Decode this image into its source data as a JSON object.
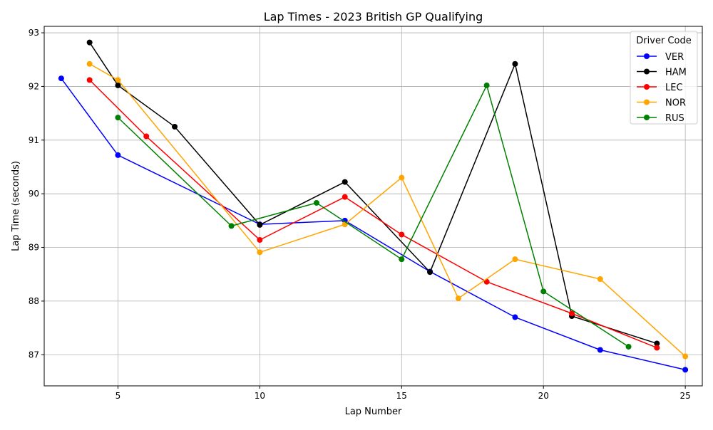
{
  "chart_data": {
    "type": "line",
    "title": "Lap Times - 2023 British GP Qualifying",
    "xlabel": "Lap Number",
    "ylabel": "Lap Time (seconds)",
    "xlim": [
      2.4,
      25.6
    ],
    "ylim": [
      86.42,
      93.12
    ],
    "xticks": [
      5,
      10,
      15,
      20,
      25
    ],
    "yticks": [
      87,
      88,
      89,
      90,
      91,
      92,
      93
    ],
    "grid": true,
    "legend_title": "Driver Code",
    "legend_position": "top-right",
    "series": [
      {
        "name": "VER",
        "color": "#0000ff",
        "x": [
          3,
          5,
          10,
          13,
          16,
          19,
          22,
          25
        ],
        "y": [
          92.15,
          90.72,
          89.43,
          89.5,
          88.55,
          87.7,
          87.09,
          86.72
        ]
      },
      {
        "name": "HAM",
        "color": "#000000",
        "x": [
          4,
          5,
          7,
          10,
          13,
          16,
          19,
          21,
          24
        ],
        "y": [
          92.82,
          92.02,
          91.25,
          89.42,
          90.22,
          88.54,
          92.42,
          87.72,
          87.21
        ]
      },
      {
        "name": "LEC",
        "color": "#ff0000",
        "x": [
          4,
          6,
          10,
          13,
          15,
          18,
          21,
          24
        ],
        "y": [
          92.12,
          91.07,
          89.14,
          89.94,
          89.24,
          88.36,
          87.77,
          87.13
        ]
      },
      {
        "name": "NOR",
        "color": "#ffa500",
        "x": [
          4,
          5,
          10,
          13,
          15,
          17,
          19,
          22,
          25
        ],
        "y": [
          92.42,
          92.12,
          88.91,
          89.43,
          90.3,
          88.05,
          88.78,
          88.41,
          86.97
        ]
      },
      {
        "name": "RUS",
        "color": "#008000",
        "x": [
          5,
          9,
          12,
          15,
          18,
          20,
          23
        ],
        "y": [
          91.42,
          89.4,
          89.83,
          88.78,
          92.02,
          88.18,
          87.15
        ]
      }
    ]
  }
}
